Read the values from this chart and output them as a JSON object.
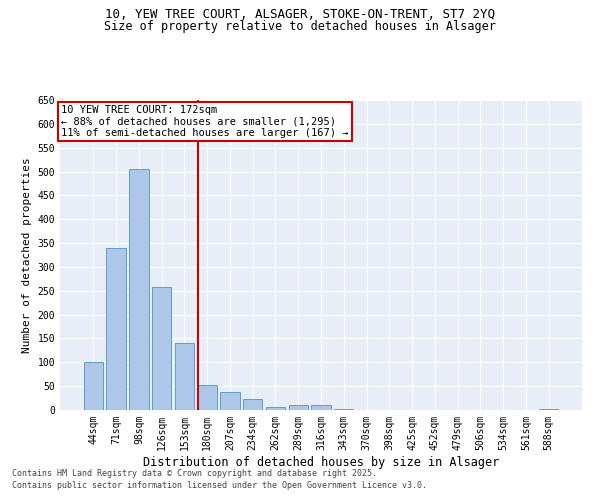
{
  "title1": "10, YEW TREE COURT, ALSAGER, STOKE-ON-TRENT, ST7 2YQ",
  "title2": "Size of property relative to detached houses in Alsager",
  "xlabel": "Distribution of detached houses by size in Alsager",
  "ylabel": "Number of detached properties",
  "categories": [
    "44sqm",
    "71sqm",
    "98sqm",
    "126sqm",
    "153sqm",
    "180sqm",
    "207sqm",
    "234sqm",
    "262sqm",
    "289sqm",
    "316sqm",
    "343sqm",
    "370sqm",
    "398sqm",
    "425sqm",
    "452sqm",
    "479sqm",
    "506sqm",
    "534sqm",
    "561sqm",
    "588sqm"
  ],
  "values": [
    100,
    340,
    505,
    257,
    140,
    53,
    38,
    24,
    7,
    10,
    10,
    3,
    1,
    0,
    0,
    0,
    0,
    0,
    0,
    0,
    2
  ],
  "bar_color": "#aec6e8",
  "bar_edge_color": "#5a9fd4",
  "vline_color": "#cc0000",
  "vline_index": 4.575,
  "annotation_text": "10 YEW TREE COURT: 172sqm\n← 88% of detached houses are smaller (1,295)\n11% of semi-detached houses are larger (167) →",
  "annotation_box_color": "#ffffff",
  "annotation_box_edge_color": "#cc0000",
  "ylim": [
    0,
    650
  ],
  "yticks": [
    0,
    50,
    100,
    150,
    200,
    250,
    300,
    350,
    400,
    450,
    500,
    550,
    600,
    650
  ],
  "bg_color": "#e8eef7",
  "footer1": "Contains HM Land Registry data © Crown copyright and database right 2025.",
  "footer2": "Contains public sector information licensed under the Open Government Licence v3.0.",
  "title_fontsize": 9,
  "subtitle_fontsize": 8.5,
  "axis_label_fontsize": 8,
  "tick_fontsize": 7,
  "annotation_fontsize": 7.5,
  "footer_fontsize": 6
}
